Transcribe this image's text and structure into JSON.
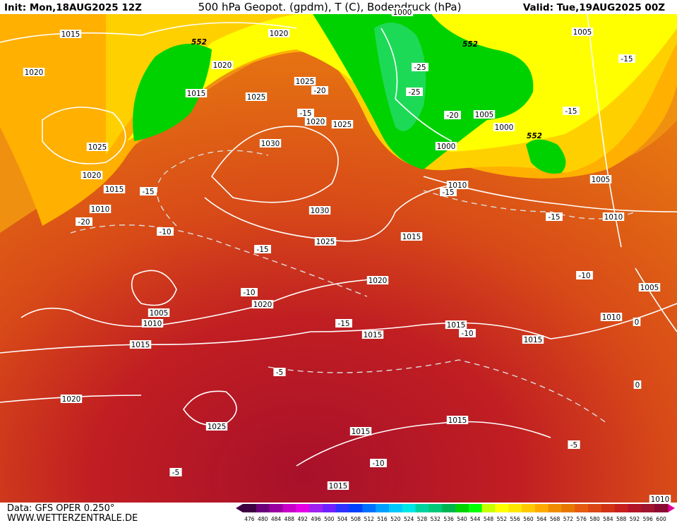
{
  "header": {
    "init": "Init: Mon,18AUG2025 12Z",
    "title": "500 hPa Geopot. (gpdm), T (C), Bodendruck (hPa)",
    "valid": "Valid: Tue,19AUG2025 00Z"
  },
  "footer": {
    "data": "Data: GFS OPER 0.250°",
    "site": "WWW.WETTERZENTRALE.DE"
  },
  "legend": {
    "values": [
      476,
      480,
      484,
      488,
      492,
      496,
      500,
      504,
      508,
      512,
      516,
      520,
      524,
      528,
      532,
      536,
      540,
      544,
      548,
      552,
      556,
      560,
      564,
      568,
      572,
      576,
      580,
      584,
      588,
      592,
      596,
      600
    ],
    "colors": [
      "#3d0041",
      "#6b007a",
      "#9a00a0",
      "#c800c8",
      "#e600e6",
      "#a020f0",
      "#7020ff",
      "#3030ff",
      "#0040ff",
      "#0070ff",
      "#00a0ff",
      "#00c8ff",
      "#00e6e6",
      "#00d2a0",
      "#00c878",
      "#00b450",
      "#00d200",
      "#00ff00",
      "#c8ff00",
      "#ffff00",
      "#ffe600",
      "#ffc800",
      "#ffaa00",
      "#f08c00",
      "#e67800",
      "#e65a10",
      "#dc4614",
      "#d23214",
      "#c81e1e",
      "#b41428",
      "#a0142d",
      "#8c0a32"
    ]
  },
  "map": {
    "pressure_labels": [
      "1015",
      "1020",
      "1020",
      "1020",
      "1015",
      "1025",
      "1025",
      "1025",
      "1020",
      "1015",
      "1010",
      "1030",
      "1020",
      "1025",
      "1030",
      "1025",
      "1020",
      "1020",
      "1005",
      "1010",
      "1015",
      "1015",
      "1015",
      "1015",
      "1015",
      "1010",
      "1000",
      "1005",
      "1000",
      "1005",
      "1005",
      "1010",
      "1005",
      "1010",
      "1020",
      "1025",
      "1015",
      "1015",
      "1015",
      "1010",
      "1000"
    ],
    "temperature_labels": [
      "-15",
      "-20",
      "-15",
      "-25",
      "-25",
      "-20",
      "-15",
      "-15",
      "-15",
      "-20",
      "-10",
      "-15",
      "-15",
      "-10",
      "-15",
      "-10",
      "-10",
      "0",
      "0",
      "-5",
      "-5",
      "-10",
      "-5"
    ],
    "geopotential_labels": [
      "552",
      "552",
      "552"
    ]
  }
}
